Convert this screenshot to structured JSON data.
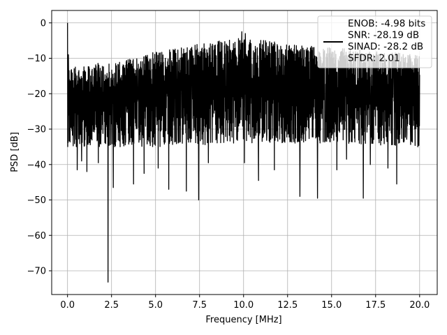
{
  "chart_data": {
    "type": "line",
    "xlabel": "Frequency [MHz]",
    "ylabel": "PSD [dB]",
    "xlim": [
      -0.9,
      21.0
    ],
    "ylim": [
      -76.7,
      3.5
    ],
    "xticks": [
      0.0,
      2.5,
      5.0,
      7.5,
      10.0,
      12.5,
      15.0,
      17.5,
      20.0
    ],
    "xtick_labels": [
      "0.0",
      "2.5",
      "5.0",
      "7.5",
      "10.0",
      "12.5",
      "15.0",
      "17.5",
      "20.0"
    ],
    "yticks": [
      0,
      -10,
      -20,
      -30,
      -40,
      -50,
      -60,
      -70
    ],
    "ytick_labels": [
      "0",
      "−10",
      "−20",
      "−30",
      "−40",
      "−50",
      "−60",
      "−70"
    ],
    "grid": true,
    "legend": {
      "placement": "top-right",
      "entries": [
        "ENOB: -4.98 bits",
        "SNR: -28.19 dB",
        "SINAD: -28.2 dB",
        "SFDR: 2.01"
      ]
    },
    "series": [
      {
        "color": "#000000",
        "x_range": [
          0.0,
          20.0
        ],
        "noise_floor_trend": [
          [
            0.0,
            -22
          ],
          [
            5.0,
            -19
          ],
          [
            10.0,
            -18
          ],
          [
            15.0,
            -18.5
          ],
          [
            20.0,
            -20
          ]
        ],
        "envelope_upper": [
          [
            0.0,
            -12
          ],
          [
            2.5,
            -11
          ],
          [
            5.0,
            -8
          ],
          [
            7.5,
            -6
          ],
          [
            10.0,
            -4
          ],
          [
            12.5,
            -6
          ],
          [
            15.0,
            -7
          ],
          [
            17.5,
            -8
          ],
          [
            20.0,
            -9
          ]
        ],
        "envelope_lower": [
          [
            0.0,
            -35
          ],
          [
            5.0,
            -35
          ],
          [
            10.0,
            -34
          ],
          [
            15.0,
            -34
          ],
          [
            20.0,
            -35
          ]
        ],
        "peaks": [
          {
            "x": 0.0,
            "y": 0.0
          },
          {
            "x": 0.05,
            "y": -9
          },
          {
            "x": 9.9,
            "y": -2.5
          },
          {
            "x": 10.1,
            "y": -3
          }
        ],
        "dips": [
          {
            "x": 0.55,
            "y": -41.5
          },
          {
            "x": 0.8,
            "y": -39
          },
          {
            "x": 1.1,
            "y": -42
          },
          {
            "x": 1.75,
            "y": -39.5
          },
          {
            "x": 2.3,
            "y": -73.2
          },
          {
            "x": 2.6,
            "y": -46.5
          },
          {
            "x": 3.75,
            "y": -45.5
          },
          {
            "x": 4.35,
            "y": -42.5
          },
          {
            "x": 5.15,
            "y": -41
          },
          {
            "x": 5.75,
            "y": -47
          },
          {
            "x": 6.75,
            "y": -47.5
          },
          {
            "x": 7.45,
            "y": -50
          },
          {
            "x": 8.0,
            "y": -39.5
          },
          {
            "x": 10.05,
            "y": -39.5
          },
          {
            "x": 10.85,
            "y": -44.5
          },
          {
            "x": 11.75,
            "y": -41.5
          },
          {
            "x": 13.2,
            "y": -49
          },
          {
            "x": 14.2,
            "y": -49.5
          },
          {
            "x": 15.3,
            "y": -41.5
          },
          {
            "x": 15.85,
            "y": -38.5
          },
          {
            "x": 16.8,
            "y": -49.5
          },
          {
            "x": 17.2,
            "y": -40
          },
          {
            "x": 18.2,
            "y": -41
          },
          {
            "x": 18.7,
            "y": -45.5
          },
          {
            "x": 19.9,
            "y": -35
          }
        ]
      }
    ]
  }
}
